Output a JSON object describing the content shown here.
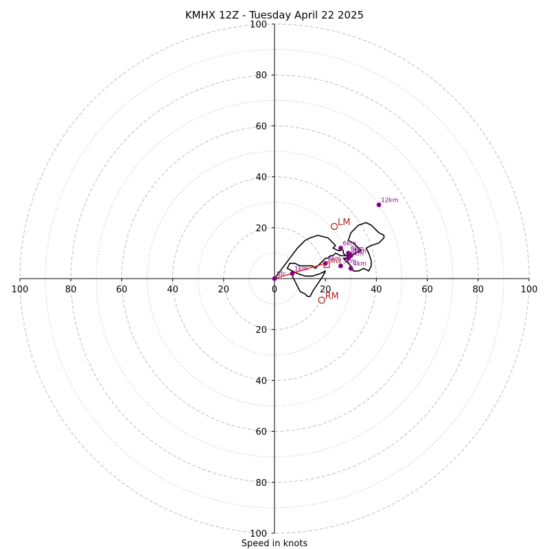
{
  "chart_data": {
    "type": "scatter",
    "subtype": "hodograph",
    "title": "KMHX 12Z - Tuesday April 22 2025",
    "xlabel": "Speed in knots",
    "ylabel": "",
    "xlim": [
      -100,
      100
    ],
    "ylim": [
      -100,
      100
    ],
    "x_tick_labels": [
      "100",
      "80",
      "60",
      "40",
      "20",
      "0",
      "20",
      "40",
      "60",
      "80",
      "100"
    ],
    "x_ticks": [
      -100,
      -80,
      -60,
      -40,
      -20,
      0,
      20,
      40,
      60,
      80,
      100
    ],
    "y_tick_labels": [
      "20",
      "40",
      "60",
      "80",
      "100"
    ],
    "y_ticks_up": [
      20,
      40,
      60,
      80,
      100
    ],
    "y_ticks_down": [
      -20,
      -40,
      -60,
      -80,
      -100
    ],
    "rings_major": [
      20,
      40,
      60,
      80,
      100
    ],
    "rings_minor": [
      10,
      30,
      50,
      70,
      90
    ],
    "grid": true,
    "colors": {
      "hodograph": "#000000",
      "height_markers": "#800080",
      "storm_motion": "#b22222",
      "shear_vector": "#ff0000",
      "rings": "#bbbbbb"
    },
    "hodograph": {
      "u": [
        0,
        3,
        6,
        9,
        12,
        14,
        17,
        21,
        23,
        24,
        23,
        25,
        26,
        26,
        27,
        27,
        28,
        29,
        30,
        28,
        27,
        30,
        31,
        33,
        35,
        37,
        38,
        38,
        37,
        36,
        38,
        41,
        43,
        43,
        41,
        40,
        39,
        38,
        36,
        33,
        30,
        29,
        31,
        33,
        34,
        32,
        30,
        28,
        26,
        24,
        23,
        22,
        21,
        20,
        18,
        17,
        16,
        15,
        12,
        10,
        8,
        7,
        6,
        5,
        7,
        9,
        12,
        15,
        18,
        20,
        19,
        17,
        15,
        14,
        13,
        12,
        10,
        9,
        8,
        7
      ],
      "v": [
        0,
        4,
        8,
        12,
        15,
        16,
        17,
        16,
        14,
        13,
        12,
        11,
        11,
        12,
        11,
        10,
        9,
        9,
        10,
        8,
        8,
        5,
        3,
        3,
        4,
        3,
        5,
        7,
        10,
        12,
        13,
        14,
        16,
        17,
        18,
        19,
        20,
        21,
        22,
        21,
        18,
        15,
        14,
        12,
        11,
        10,
        9,
        9,
        9,
        10,
        9,
        9,
        8,
        8,
        6,
        5,
        4,
        5,
        5,
        5,
        6,
        6,
        6,
        4,
        3,
        2,
        1,
        1,
        2,
        3,
        1,
        -2,
        -5,
        -7,
        -7,
        -6,
        -5,
        -3,
        -1,
        1
      ]
    },
    "height_markers": [
      {
        "label": "Sfc",
        "u": 0,
        "v": 0
      },
      {
        "label": "1km",
        "u": 7,
        "v": 2
      },
      {
        "label": "2km",
        "u": 20,
        "v": 6
      },
      {
        "label": "3km",
        "u": 26,
        "v": 5
      },
      {
        "label": "4km",
        "u": 30,
        "v": 4
      },
      {
        "label": "5km",
        "u": 29,
        "v": 8
      },
      {
        "label": "6km",
        "u": 26,
        "v": 12
      },
      {
        "label": "8km",
        "u": 29,
        "v": 10
      },
      {
        "label": "9km",
        "u": 30,
        "v": 9
      },
      {
        "label": "12km",
        "u": 41,
        "v": 29
      }
    ],
    "storm_motion": [
      {
        "label": "LM",
        "u": 23.5,
        "v": 20.5
      },
      {
        "label": "RM",
        "u": 18.5,
        "v": -8.5
      },
      {
        "label": "MW",
        "u": 20.5,
        "v": 5.5
      }
    ],
    "shear_vector": {
      "from": [
        0,
        0
      ],
      "to": [
        20,
        6
      ]
    }
  }
}
